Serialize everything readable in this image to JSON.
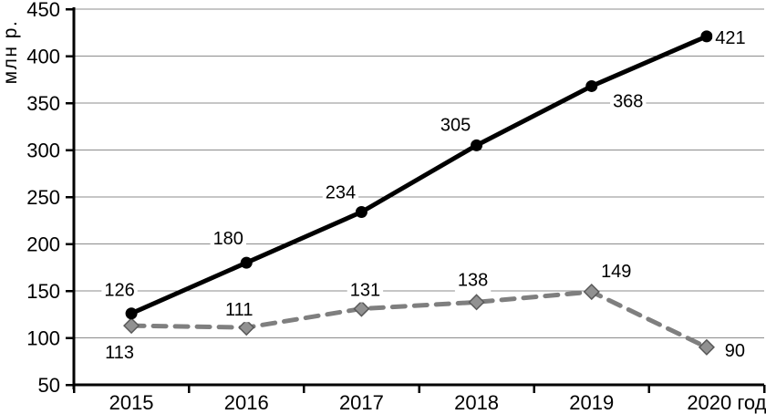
{
  "chart_data": {
    "type": "line",
    "title": "",
    "ylabel": "млн р.",
    "xlabel": "",
    "categories": [
      "2015",
      "2016",
      "2017",
      "2018",
      "2019",
      "2020 год"
    ],
    "y_ticks": [
      50,
      100,
      150,
      200,
      250,
      300,
      350,
      400,
      450
    ],
    "ylim": [
      50,
      450
    ],
    "grid": "horizontal",
    "legend_position": "none",
    "colors": {
      "axis": "#000000",
      "gridline": "#8c8c8c",
      "label_text": "#000000",
      "series1_line": "#000000",
      "series1_marker": "#000000",
      "series2_line": "#7f7f7f",
      "series2_marker_fill": "#919191",
      "series2_marker_stroke": "#595959"
    },
    "series": [
      {
        "name": "series-1-solid-black-circles",
        "line_style": "solid",
        "marker": "circle",
        "values": [
          126,
          180,
          234,
          305,
          368,
          421
        ],
        "label_offsets": [
          [
            -13,
            -26
          ],
          [
            -20,
            -27
          ],
          [
            -23,
            -22
          ],
          [
            -23,
            -23
          ],
          [
            40,
            16
          ],
          [
            26,
            1
          ]
        ]
      },
      {
        "name": "series-2-dashed-gray-diamonds",
        "line_style": "dashed",
        "marker": "diamond",
        "values": [
          113,
          111,
          131,
          138,
          149,
          90
        ],
        "label_offsets": [
          [
            -13,
            29
          ],
          [
            -8,
            -20
          ],
          [
            4,
            -21
          ],
          [
            -4,
            -25
          ],
          [
            27,
            -23
          ],
          [
            31,
            3
          ]
        ]
      }
    ]
  }
}
